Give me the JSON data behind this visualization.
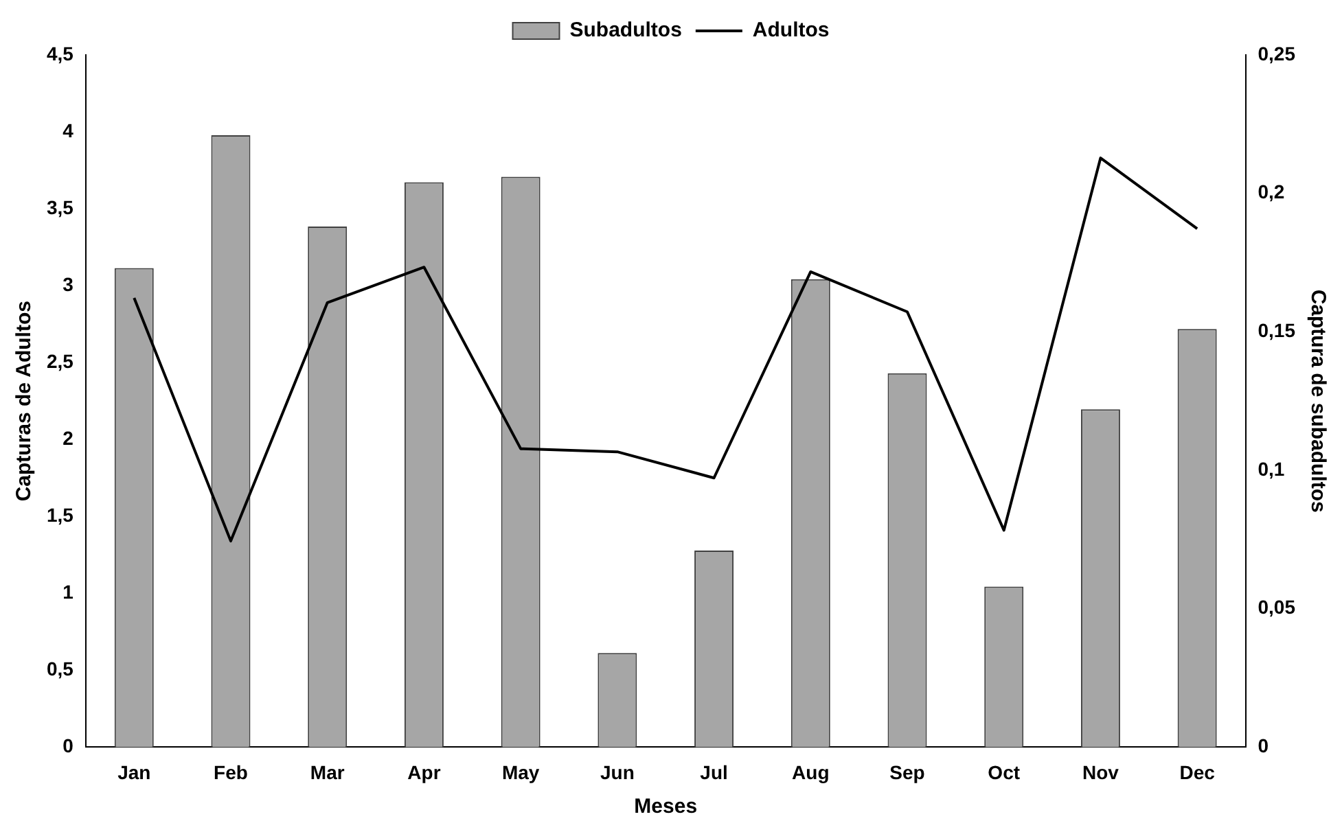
{
  "chart_data": {
    "type": "bar",
    "xlabel": "Meses",
    "ylabel": "Capturas de Adultos",
    "y2label": "Captura de subadultos",
    "categories": [
      "Jan",
      "Feb",
      "Mar",
      "Apr",
      "May",
      "Jun",
      "Jul",
      "Aug",
      "Sep",
      "Oct",
      "Nov",
      "Dec"
    ],
    "series": [
      {
        "name": "Subadultos",
        "axis": "y2",
        "color": "#a6a6a6",
        "values": [
          0.173,
          0.221,
          0.188,
          0.204,
          0.206,
          0.034,
          0.071,
          0.169,
          0.135,
          0.058,
          0.122,
          0.151
        ]
      },
      {
        "name": "Adultos",
        "type": "line",
        "color": "#000000",
        "values": [
          2.92,
          1.34,
          2.89,
          3.12,
          1.94,
          1.92,
          1.75,
          3.09,
          2.83,
          1.41,
          3.83,
          3.37
        ]
      }
    ],
    "ylim": [
      0,
      4.5
    ],
    "yticks": [
      0,
      {
        "value": 0.5,
        "label": "0,5"
      },
      1,
      {
        "value": 1.5,
        "label": "1,5"
      },
      2,
      {
        "value": 2.5,
        "label": "2,5"
      },
      3,
      {
        "value": 3.5,
        "label": "3,5"
      },
      4,
      {
        "value": 4.5,
        "label": "4,5"
      }
    ],
    "y2lim": [
      0,
      0.25
    ],
    "y2ticks": [
      0,
      {
        "value": 0.05,
        "label": "0,05"
      },
      {
        "value": 0.1,
        "label": "0,1"
      },
      {
        "value": 0.15,
        "label": "0,15"
      },
      {
        "value": 0.2,
        "label": "0,2"
      },
      {
        "value": 0.25,
        "label": "0,25"
      }
    ],
    "legend": "top",
    "grid": false
  }
}
